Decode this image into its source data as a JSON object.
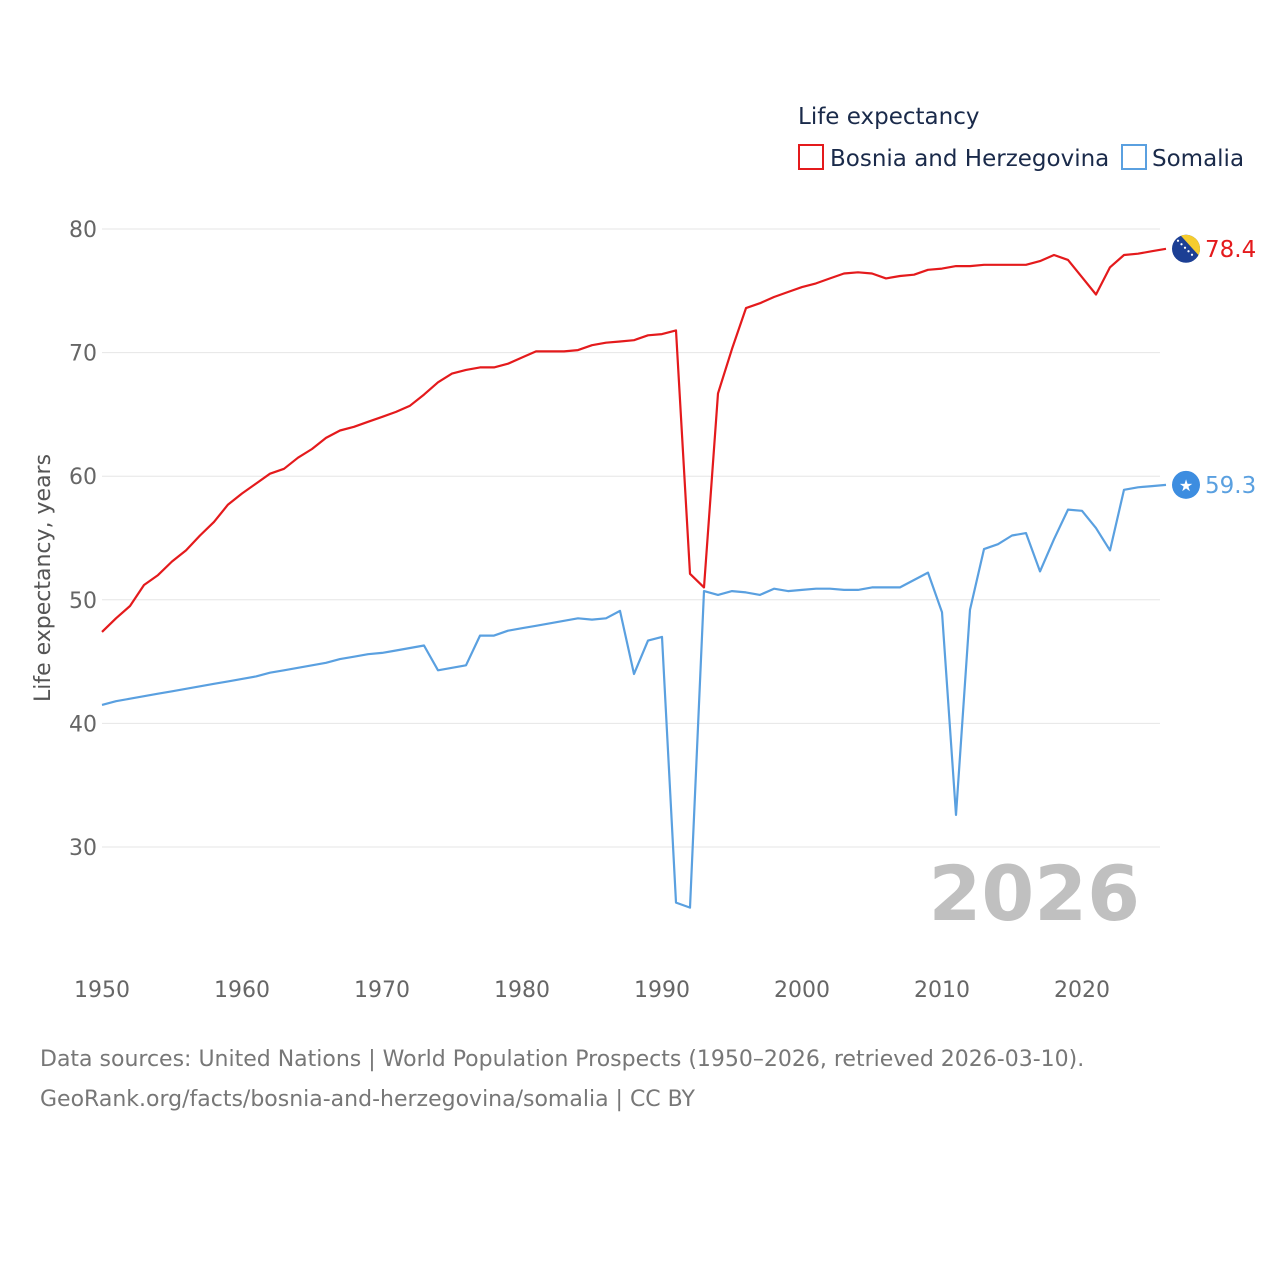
{
  "chart_data": {
    "type": "line",
    "title": "Life expectancy",
    "ylabel": "Life expectancy, years",
    "xlabel": "",
    "xlim": [
      1950,
      2026
    ],
    "ylim": [
      22,
      84
    ],
    "x_ticks": [
      1950,
      1960,
      1970,
      1980,
      1990,
      2000,
      2010,
      2020
    ],
    "y_ticks": [
      30,
      40,
      50,
      60,
      70,
      80
    ],
    "grid": true,
    "legend_position": "top-right",
    "watermark_year": "2026",
    "x": [
      1950,
      1951,
      1952,
      1953,
      1954,
      1955,
      1956,
      1957,
      1958,
      1959,
      1960,
      1961,
      1962,
      1963,
      1964,
      1965,
      1966,
      1967,
      1968,
      1969,
      1970,
      1971,
      1972,
      1973,
      1974,
      1975,
      1976,
      1977,
      1978,
      1979,
      1980,
      1981,
      1982,
      1983,
      1984,
      1985,
      1986,
      1987,
      1988,
      1989,
      1990,
      1991,
      1992,
      1993,
      1994,
      1995,
      1996,
      1997,
      1998,
      1999,
      2000,
      2001,
      2002,
      2003,
      2004,
      2005,
      2006,
      2007,
      2008,
      2009,
      2010,
      2011,
      2012,
      2013,
      2014,
      2015,
      2016,
      2017,
      2018,
      2019,
      2020,
      2021,
      2022,
      2023,
      2024,
      2025,
      2026
    ],
    "series": [
      {
        "name": "Bosnia and Herzegovina",
        "color": "#e41a1c",
        "end_label": "78.4",
        "marker_icon": "bosnia-flag-icon",
        "values": [
          47.4,
          48.5,
          49.5,
          51.2,
          52.0,
          53.1,
          54.0,
          55.2,
          56.3,
          57.7,
          58.6,
          59.4,
          60.2,
          60.6,
          61.5,
          62.2,
          63.1,
          63.7,
          64.0,
          64.4,
          64.8,
          65.2,
          65.7,
          66.6,
          67.6,
          68.3,
          68.6,
          68.8,
          68.8,
          69.1,
          69.6,
          70.1,
          70.1,
          70.1,
          70.2,
          70.6,
          70.8,
          70.9,
          71.0,
          71.4,
          71.5,
          71.8,
          52.1,
          51.0,
          66.7,
          70.3,
          73.6,
          74.0,
          74.5,
          74.9,
          75.3,
          75.6,
          76.0,
          76.4,
          76.5,
          76.4,
          76.0,
          76.2,
          76.3,
          76.7,
          76.8,
          77.0,
          77.0,
          77.1,
          77.1,
          77.1,
          77.1,
          77.4,
          77.9,
          77.5,
          76.1,
          74.7,
          76.9,
          77.9,
          78.0,
          78.2,
          78.4
        ]
      },
      {
        "name": "Somalia",
        "color": "#5aa0e0",
        "end_label": "59.3",
        "marker_icon": "somalia-flag-icon",
        "values": [
          41.5,
          41.8,
          42.0,
          42.2,
          42.4,
          42.6,
          42.8,
          43.0,
          43.2,
          43.4,
          43.6,
          43.8,
          44.1,
          44.3,
          44.5,
          44.7,
          44.9,
          45.2,
          45.4,
          45.6,
          45.7,
          45.9,
          46.1,
          46.3,
          44.3,
          44.5,
          44.7,
          47.1,
          47.1,
          47.5,
          47.7,
          47.9,
          48.1,
          48.3,
          48.5,
          48.4,
          48.5,
          49.1,
          44.0,
          46.7,
          47.0,
          25.5,
          25.1,
          50.7,
          50.4,
          50.7,
          50.6,
          50.4,
          50.9,
          50.7,
          50.8,
          50.9,
          50.9,
          50.8,
          50.8,
          51.0,
          51.0,
          51.0,
          51.6,
          52.2,
          49.0,
          32.6,
          49.2,
          54.1,
          54.5,
          55.2,
          55.4,
          52.3,
          54.9,
          57.3,
          57.2,
          55.8,
          54.0,
          58.9,
          59.1,
          59.2,
          59.3
        ]
      }
    ]
  },
  "footer": {
    "sources": "Data sources: United Nations | World Population Prospects (1950–2026, retrieved 2026-03-10).",
    "credit": "GeoRank.org/facts/bosnia-and-herzegovina/somalia | CC BY"
  }
}
